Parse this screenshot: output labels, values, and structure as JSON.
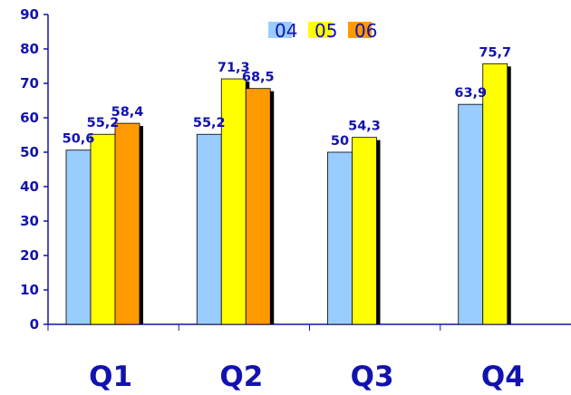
{
  "chart_data": {
    "type": "bar",
    "categories": [
      "Q1",
      "Q2",
      "Q3",
      "Q4"
    ],
    "series": [
      {
        "name": "04",
        "values": [
          50.6,
          55.2,
          50,
          63.9
        ],
        "color": "#99ccff"
      },
      {
        "name": "05",
        "values": [
          55.2,
          71.3,
          54.3,
          75.7
        ],
        "color": "#ffff00"
      },
      {
        "name": "06",
        "values": [
          58.4,
          68.5,
          null,
          null
        ],
        "color": "#ff9900"
      }
    ],
    "data_labels": [
      [
        "50,6",
        "55,2",
        "50",
        "63,9"
      ],
      [
        "55,2",
        "71,3",
        "54,3",
        "75,7"
      ],
      [
        "58,4",
        "68,5",
        null,
        null
      ]
    ],
    "y_ticks": [
      "0",
      "10",
      "20",
      "30",
      "40",
      "50",
      "60",
      "70",
      "80",
      "90"
    ],
    "ylim": [
      0,
      90
    ],
    "grid": false,
    "legend_position": "top-center",
    "title": "",
    "xlabel": "",
    "ylabel": "",
    "axis_color": "#1212b0",
    "text_color": "#1212b0"
  }
}
